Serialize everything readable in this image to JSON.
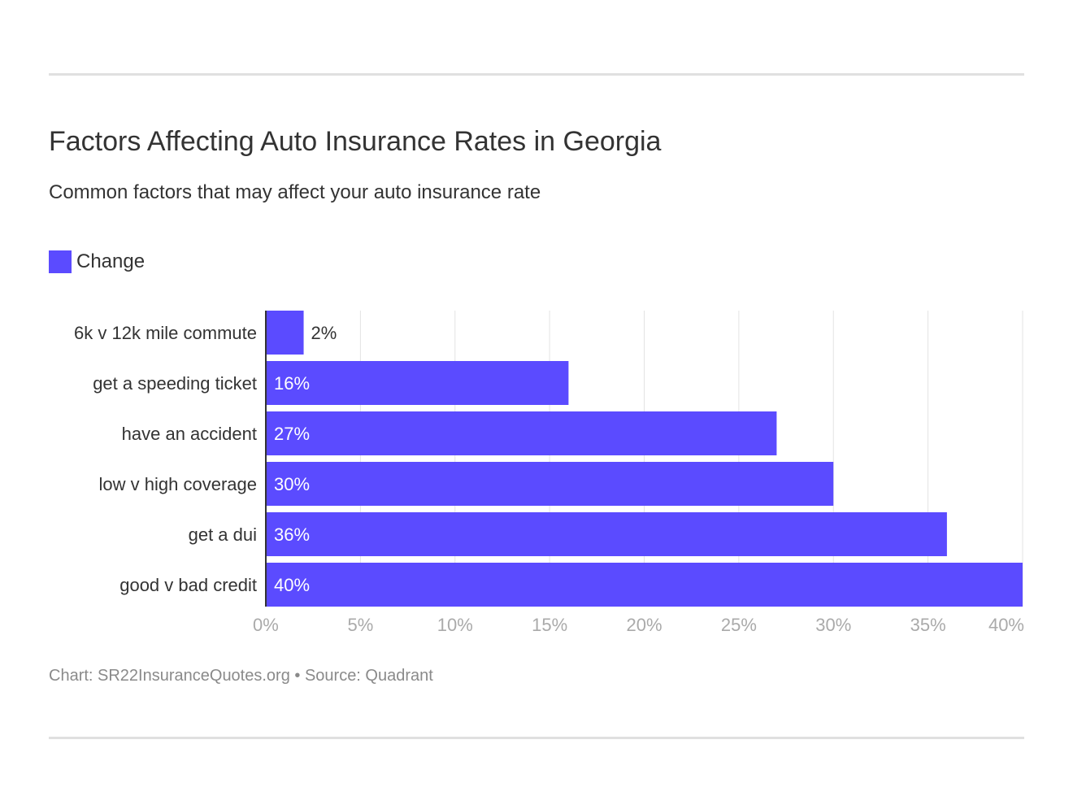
{
  "chart_data": {
    "type": "bar",
    "orientation": "horizontal",
    "title": "Factors Affecting Auto Insurance Rates in Georgia",
    "subtitle": "Common factors that may affect your auto insurance rate",
    "categories": [
      "6k v 12k mile commute",
      "get a speeding ticket",
      "have an accident",
      "low v high coverage",
      "get a dui",
      "good v bad credit"
    ],
    "series": [
      {
        "name": "Change",
        "values": [
          2,
          16,
          27,
          30,
          36,
          40
        ],
        "color": "#5b4bff"
      }
    ],
    "data_labels": [
      "2%",
      "16%",
      "27%",
      "30%",
      "36%",
      "40%"
    ],
    "xlim": [
      0,
      40
    ],
    "xticks": [
      0,
      5,
      10,
      15,
      20,
      25,
      30,
      35,
      40
    ],
    "xtick_labels": [
      "0%",
      "5%",
      "10%",
      "15%",
      "20%",
      "25%",
      "30%",
      "35%",
      "40%"
    ],
    "grid": true,
    "legend": "top-left",
    "footer": "Chart: SR22InsuranceQuotes.org • Source: Quadrant"
  }
}
